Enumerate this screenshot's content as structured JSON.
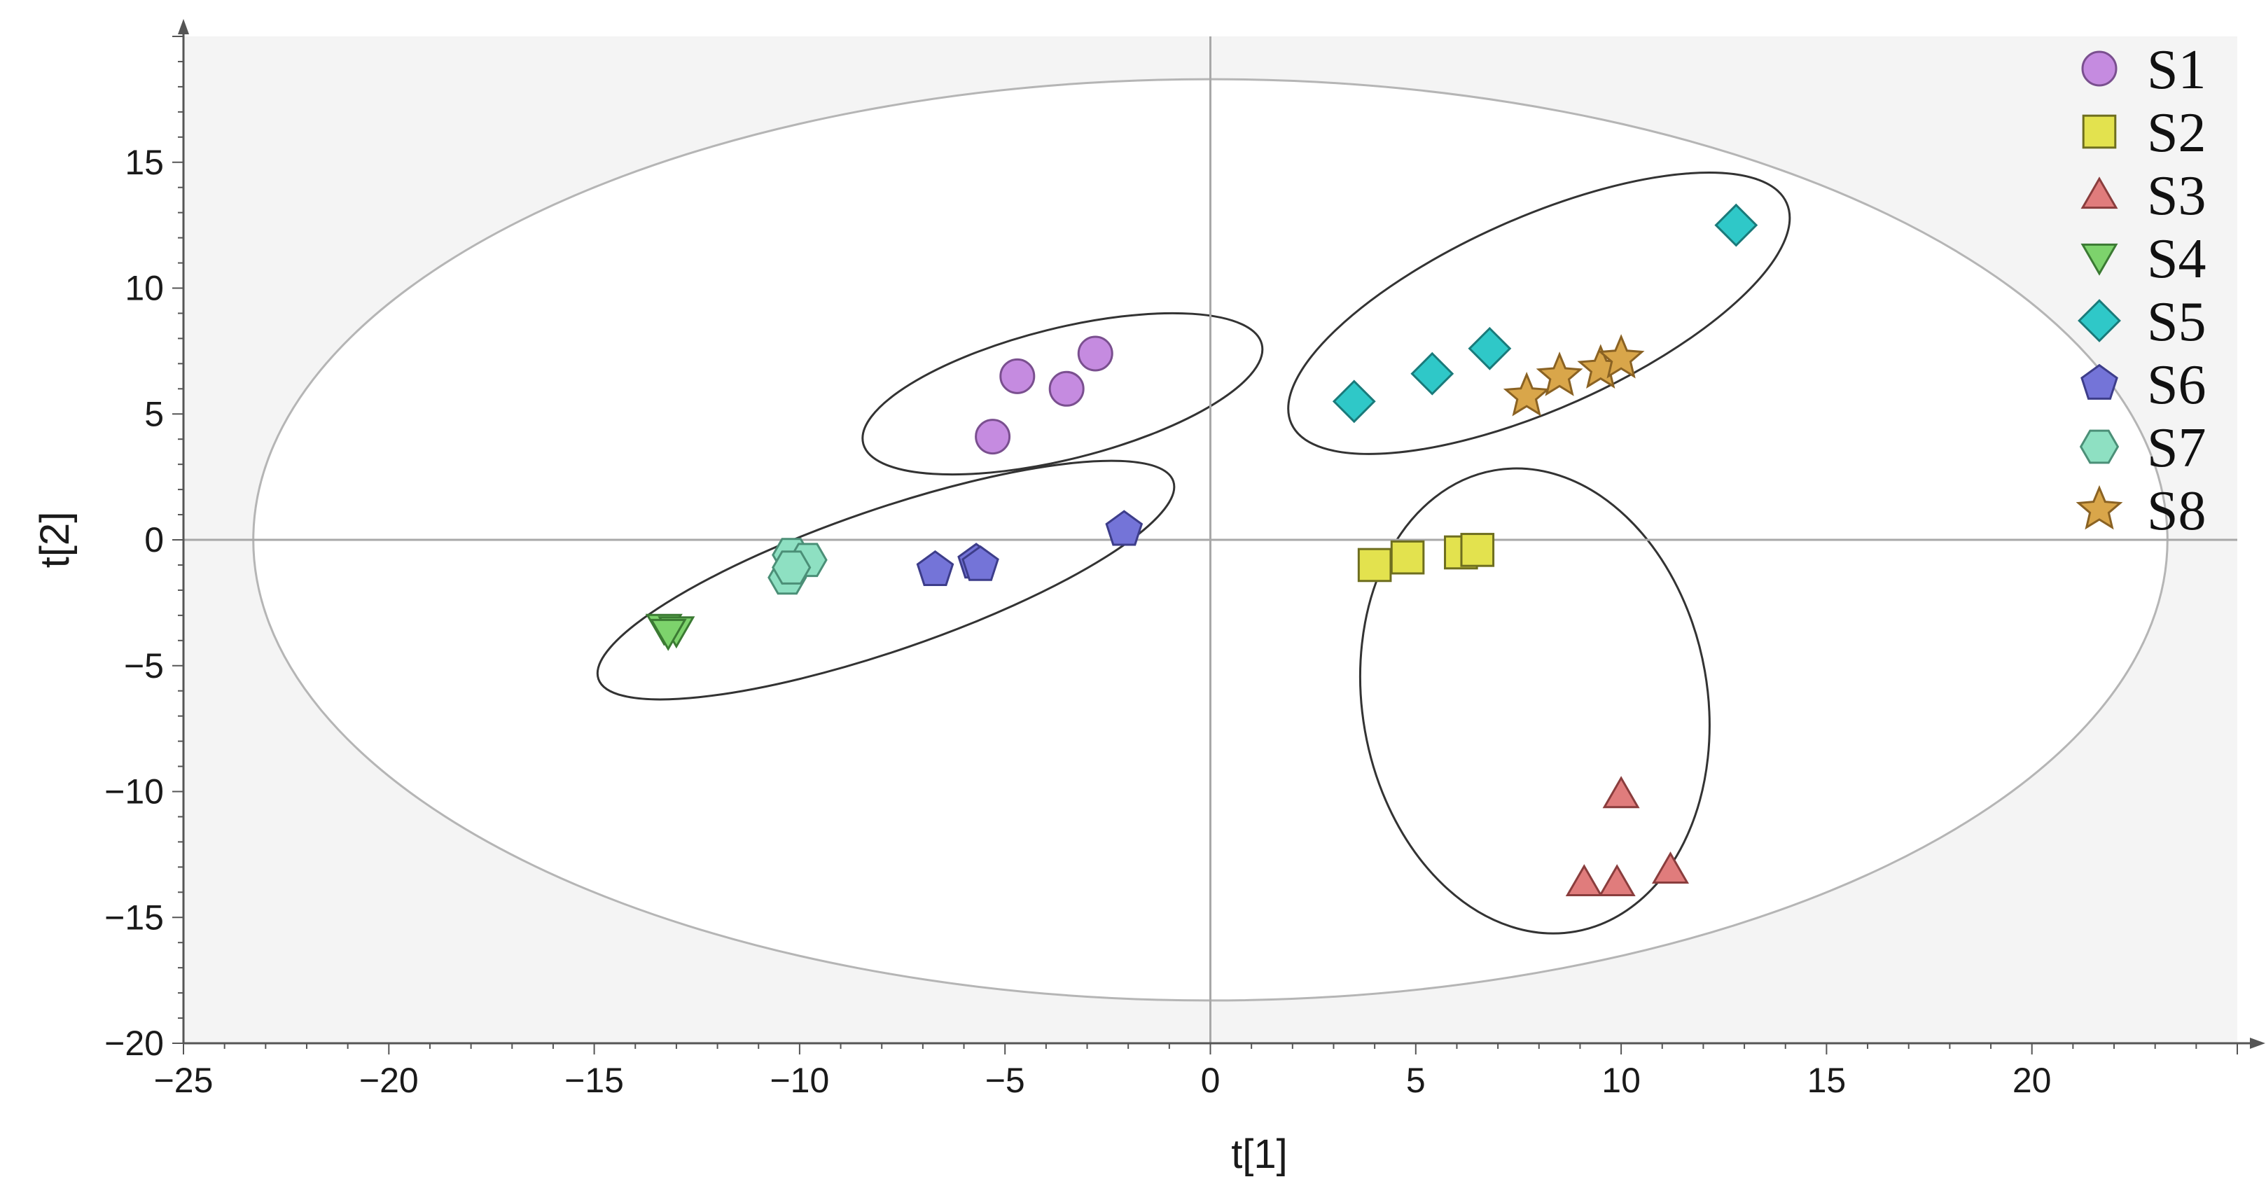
{
  "chart_data": {
    "type": "scatter",
    "title": "",
    "xlabel": "t[1]",
    "ylabel": "t[2]",
    "xlim": [
      -25,
      25
    ],
    "ylim": [
      -20,
      20
    ],
    "xticks": [
      -25,
      -20,
      -15,
      -10,
      -5,
      0,
      5,
      10,
      15,
      20
    ],
    "yticks": [
      -20,
      -15,
      -10,
      -5,
      0,
      5,
      10,
      15
    ],
    "xtick_labels": [
      "−25",
      "−20",
      "−15",
      "−10",
      "−5",
      "0",
      "5",
      "10",
      "15",
      "20"
    ],
    "ytick_labels": [
      "−20",
      "−15",
      "−10",
      "−5",
      "0",
      "5",
      "10",
      "15"
    ],
    "hotelling_ellipse": {
      "cx": 0,
      "cy": 0,
      "rx": 23.3,
      "ry": 18.3
    },
    "group_ellipses": [
      {
        "name": "S1 group",
        "cx": -3.6,
        "cy": 5.8,
        "rx": 5.0,
        "ry": 2.6,
        "angle_deg": 14
      },
      {
        "name": "S4/S6/S7 group",
        "cx": -7.9,
        "cy": -1.6,
        "rx": 7.4,
        "ry": 2.8,
        "angle_deg": 19
      },
      {
        "name": "S5/S8 group",
        "cx": 8.0,
        "cy": 9.0,
        "rx": 6.6,
        "ry": 3.8,
        "angle_deg": 24
      },
      {
        "name": "S2/S3 group",
        "cx": 7.9,
        "cy": -6.4,
        "rx": 4.2,
        "ry": 9.3,
        "angle_deg": 10
      }
    ],
    "series": [
      {
        "name": "S1",
        "marker": "circle",
        "color": "#c58be0",
        "stroke": "#7a4f8f",
        "x": [
          -4.7,
          -3.5,
          -2.8,
          -5.3
        ],
        "y": [
          6.5,
          6.0,
          7.4,
          4.1
        ]
      },
      {
        "name": "S2",
        "marker": "square",
        "color": "#e3e24e",
        "stroke": "#6e6e1f",
        "x": [
          4.0,
          4.8,
          6.1,
          6.5
        ],
        "y": [
          -1.0,
          -0.7,
          -0.5,
          -0.4
        ]
      },
      {
        "name": "S3",
        "marker": "triangle-up",
        "color": "#e07c7c",
        "stroke": "#8a3d3d",
        "x": [
          10.0,
          9.1,
          9.9,
          11.2
        ],
        "y": [
          -10.1,
          -13.6,
          -13.6,
          -13.1
        ]
      },
      {
        "name": "S4",
        "marker": "triangle-down",
        "color": "#7dd36c",
        "stroke": "#3b7a33",
        "x": [
          -13.3,
          -13.0,
          -13.2
        ],
        "y": [
          -3.5,
          -3.6,
          -3.7
        ]
      },
      {
        "name": "S5",
        "marker": "diamond",
        "color": "#2fc8c8",
        "stroke": "#1a7a7a",
        "x": [
          3.5,
          5.4,
          6.8,
          12.8
        ],
        "y": [
          5.5,
          6.6,
          7.6,
          12.5
        ]
      },
      {
        "name": "S6",
        "marker": "pentagon",
        "color": "#7474d8",
        "stroke": "#3d3d8a",
        "x": [
          -6.7,
          -5.7,
          -5.6,
          -2.1
        ],
        "y": [
          -1.2,
          -0.9,
          -1.0,
          0.4
        ]
      },
      {
        "name": "S7",
        "marker": "hexagon",
        "color": "#8ee0c2",
        "stroke": "#4b8f77",
        "x": [
          -10.2,
          -9.8,
          -10.3,
          -10.2
        ],
        "y": [
          -0.6,
          -0.8,
          -1.5,
          -1.1
        ]
      },
      {
        "name": "S8",
        "marker": "star",
        "color": "#d9a64a",
        "stroke": "#8a6223",
        "x": [
          7.7,
          8.5,
          9.5,
          10.0
        ],
        "y": [
          5.7,
          6.5,
          6.8,
          7.2
        ]
      }
    ],
    "legend_position": "top-right"
  }
}
